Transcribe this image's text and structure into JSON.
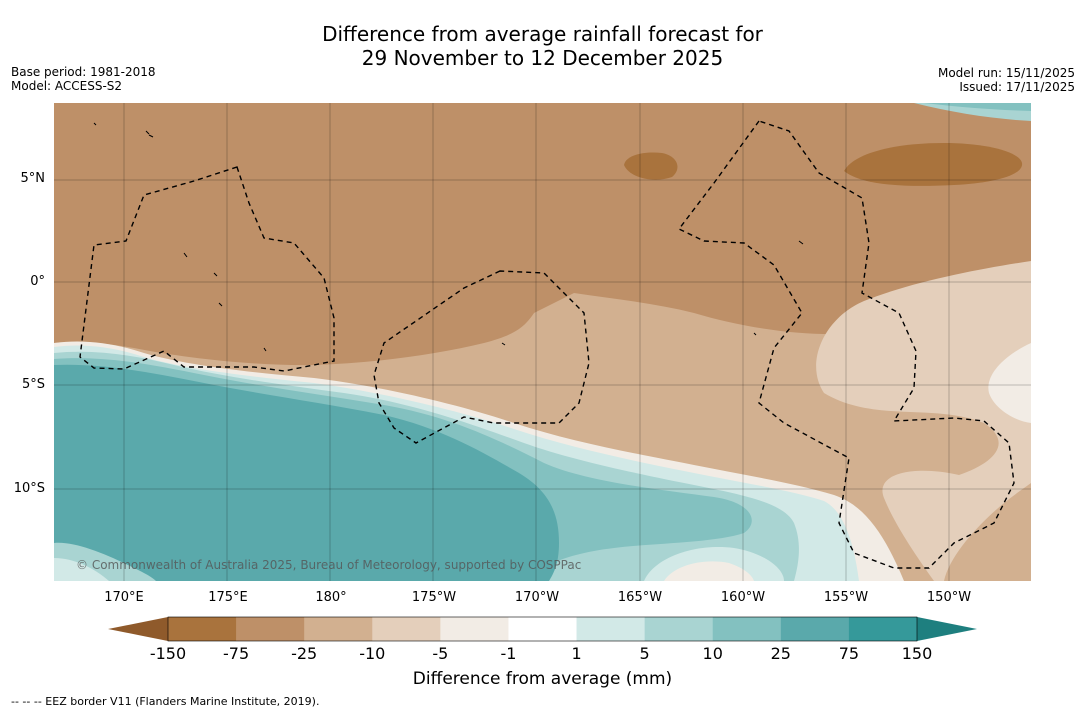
{
  "title_line1": "Difference from average rainfall forecast for",
  "title_line2": "29 November to 12 December 2025",
  "base_period": "Base period: 1981-2018",
  "model": "Model: ACCESS-S2",
  "model_run": "Model run: 15/11/2025",
  "issued": "Issued: 17/11/2025",
  "latitudes": [
    "5°N",
    "0°",
    "5°S",
    "10°S"
  ],
  "longitudes": [
    "170°E",
    "175°E",
    "180°",
    "175°W",
    "170°W",
    "165°W",
    "160°W",
    "155°W",
    "150°W"
  ],
  "copyright": "© Commonwealth of Australia 2025, Bureau of Meteorology, supported by COSPPac",
  "colorbar": {
    "ticks": [
      "-150",
      "-75",
      "-25",
      "-10",
      "-5",
      "-1",
      "1",
      "5",
      "10",
      "25",
      "75",
      "150"
    ],
    "colors": [
      "#a9733d",
      "#be9068",
      "#d2b090",
      "#e4cfbb",
      "#f2ece5",
      "#ffffff",
      "#d2e9e7",
      "#a9d4d2",
      "#83c1c0",
      "#5aa9ab",
      "#35999a"
    ],
    "under_color": "#8f5a2b",
    "over_color": "#1e7f7f",
    "title": "Difference from average (mm)"
  },
  "footnote": "--  --  -- EEZ border V11 (Flanders Marine Institute, 2019)."
}
